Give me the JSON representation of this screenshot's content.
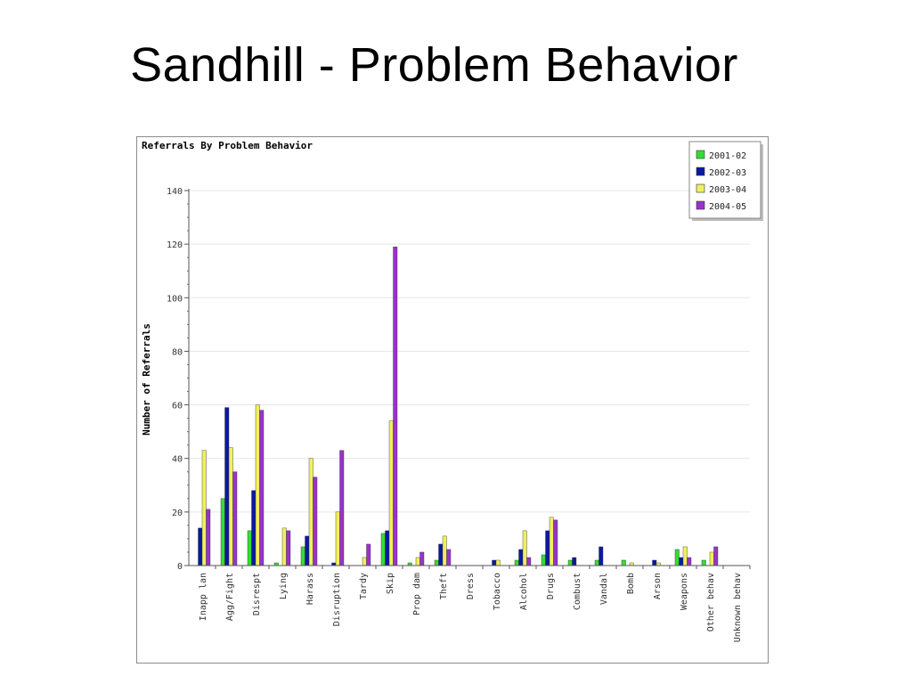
{
  "slide": {
    "title": "Sandhill  - Problem Behavior"
  },
  "chart_data": {
    "type": "bar",
    "title": "Referrals By Problem Behavior",
    "ylabel": "Number of Referrals",
    "xlabel": "",
    "ylim": [
      0,
      140
    ],
    "yticks": [
      0,
      20,
      40,
      60,
      80,
      100,
      120,
      140
    ],
    "grid": true,
    "legend": "top-right",
    "categories": [
      "Inapp lan",
      "Agg/Fight",
      "Disrespt",
      "Lying",
      "Harass",
      "Disruption",
      "Tardy",
      "Skip",
      "Prop dam",
      "Theft",
      "Dress",
      "Tobacco",
      "Alcohol",
      "Drugs",
      "Combust",
      "Vandal",
      "Bomb",
      "Arson",
      "Weapons",
      "Other behav",
      "Unknown behav"
    ],
    "series": [
      {
        "name": "2001-02",
        "color": "#33dd33",
        "values": [
          0,
          25,
          13,
          1,
          7,
          0,
          0,
          12,
          1,
          2,
          0,
          0,
          2,
          4,
          2,
          2,
          2,
          0,
          6,
          2,
          0
        ]
      },
      {
        "name": "2002-03",
        "color": "#0a1aa0",
        "values": [
          14,
          59,
          28,
          0,
          11,
          1,
          0,
          13,
          0,
          8,
          0,
          2,
          6,
          13,
          3,
          7,
          0,
          2,
          3,
          0,
          0
        ]
      },
      {
        "name": "2003-04",
        "color": "#f0f060",
        "values": [
          43,
          44,
          60,
          14,
          40,
          20,
          3,
          54,
          3,
          11,
          0,
          2,
          13,
          18,
          0,
          0,
          1,
          1,
          7,
          5,
          0
        ]
      },
      {
        "name": "2004-05",
        "color": "#9933cc",
        "values": [
          21,
          35,
          58,
          13,
          33,
          43,
          8,
          119,
          5,
          6,
          0,
          0,
          3,
          17,
          0,
          0,
          0,
          0,
          3,
          7,
          0
        ]
      }
    ]
  }
}
